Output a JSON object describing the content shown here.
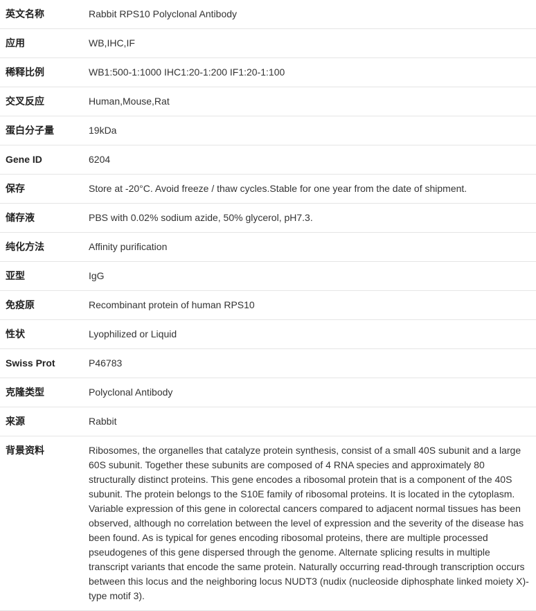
{
  "rows": [
    {
      "label": "英文名称",
      "value": "Rabbit RPS10 Polyclonal Antibody"
    },
    {
      "label": "应用",
      "value": "WB,IHC,IF"
    },
    {
      "label": "稀释比例",
      "value": "WB1:500-1:1000 IHC1:20-1:200 IF1:20-1:100"
    },
    {
      "label": "交叉反应",
      "value": "Human,Mouse,Rat"
    },
    {
      "label": "蛋白分子量",
      "value": "19kDa"
    },
    {
      "label": "Gene ID",
      "value": "6204"
    },
    {
      "label": "保存",
      "value": "Store at -20°C. Avoid freeze / thaw cycles.Stable for one year from the date of shipment."
    },
    {
      "label": "储存液",
      "value": "PBS with 0.02% sodium azide, 50% glycerol, pH7.3."
    },
    {
      "label": "纯化方法",
      "value": "Affinity purification"
    },
    {
      "label": "亚型",
      "value": "IgG"
    },
    {
      "label": "免疫原",
      "value": "Recombinant protein of human RPS10"
    },
    {
      "label": "性状",
      "value": "Lyophilized or Liquid"
    },
    {
      "label": "Swiss Prot",
      "value": "P46783"
    },
    {
      "label": "克隆类型",
      "value": "Polyclonal Antibody"
    },
    {
      "label": "来源",
      "value": "Rabbit"
    },
    {
      "label": "背景资料",
      "value": "Ribosomes, the organelles that catalyze protein synthesis, consist of a small 40S subunit and a large 60S subunit. Together these subunits are composed of 4 RNA species and approximately 80 structurally distinct proteins. This gene encodes a ribosomal protein that is a component of the 40S subunit. The protein belongs to the S10E family of ribosomal proteins. It is located in the cytoplasm. Variable expression of this gene in colorectal cancers compared to adjacent normal tissues has been observed, although no correlation between the level of expression and the severity of the disease has been found. As is typical for genes encoding ribosomal proteins, there are multiple processed pseudogenes of this gene dispersed through the genome. Alternate splicing results in multiple transcript variants that encode the same protein. Naturally occurring read-through transcription occurs between this locus and the neighboring locus NUDT3 (nudix (nucleoside diphosphate linked moiety X)-type motif 3)."
    }
  ]
}
